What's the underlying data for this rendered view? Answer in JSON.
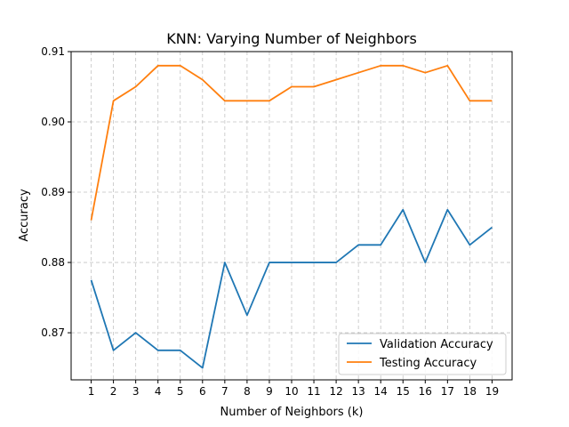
{
  "chart_data": {
    "type": "line",
    "title": "KNN: Varying Number of Neighbors",
    "xlabel": "Number of Neighbors (k)",
    "ylabel": "Accuracy",
    "x": [
      1,
      2,
      3,
      4,
      5,
      6,
      7,
      8,
      9,
      10,
      11,
      12,
      13,
      14,
      15,
      16,
      17,
      18,
      19
    ],
    "xticks": [
      1,
      2,
      3,
      4,
      5,
      6,
      7,
      8,
      9,
      10,
      11,
      12,
      13,
      14,
      15,
      16,
      17,
      18,
      19
    ],
    "yticks": [
      "0.87",
      "0.88",
      "0.89",
      "0.90",
      "0.91"
    ],
    "ylim": [
      0.8633,
      0.91
    ],
    "xlim": [
      0.1,
      19.9
    ],
    "grid": true,
    "legend": "lower-right",
    "series": [
      {
        "name": "Validation Accuracy",
        "color": "#1f77b4",
        "values": [
          0.8775,
          0.8675,
          0.87,
          0.8675,
          0.8675,
          0.865,
          0.88,
          0.8725,
          0.88,
          0.88,
          0.88,
          0.88,
          0.8825,
          0.8825,
          0.8875,
          0.88,
          0.8875,
          0.8825,
          0.885
        ]
      },
      {
        "name": "Testing Accuracy",
        "color": "#ff7f0e",
        "values": [
          0.886,
          0.903,
          0.905,
          0.908,
          0.908,
          0.906,
          0.903,
          0.903,
          0.903,
          0.905,
          0.905,
          0.906,
          0.907,
          0.908,
          0.908,
          0.907,
          0.908,
          0.903,
          0.903
        ]
      }
    ]
  }
}
